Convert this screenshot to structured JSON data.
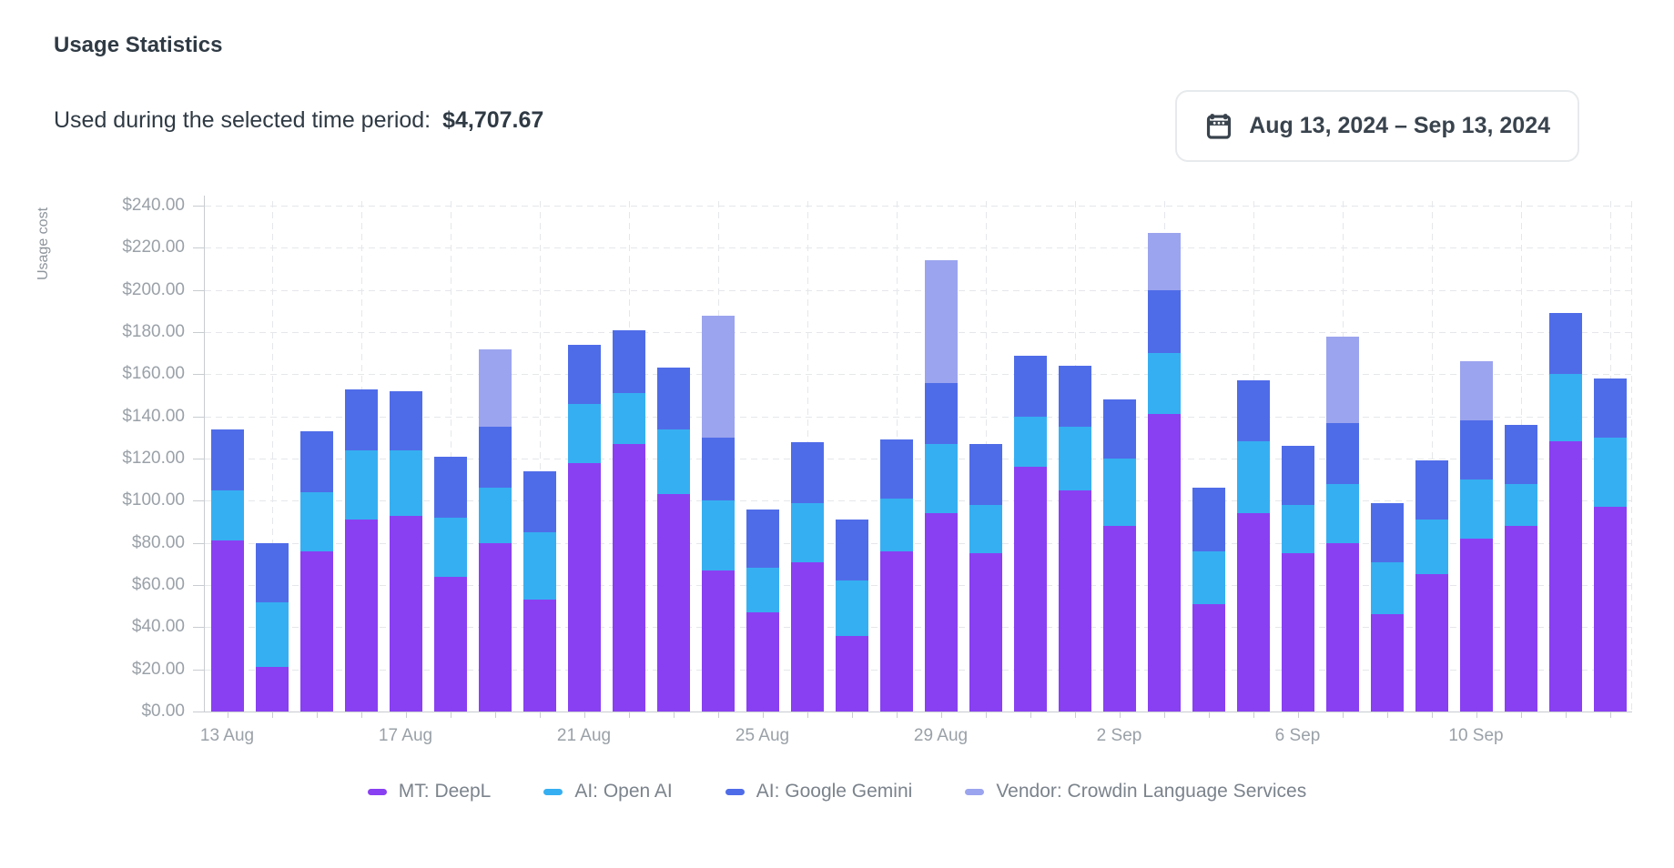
{
  "page": {
    "title": "Usage Statistics",
    "subtitle_label": "Used during the selected time period:",
    "subtitle_amount": "$4,707.67",
    "date_range": "Aug 13, 2024 – Sep 13, 2024",
    "calendar_icon": "calendar-icon",
    "icon_color": "#39434d"
  },
  "chart_data": {
    "type": "bar",
    "stacked": true,
    "title": "",
    "xlabel": "",
    "ylabel": "Usage cost",
    "ylim": [
      0,
      248
    ],
    "y_tick_step": 20,
    "y_tick_labels": [
      "$0.00",
      "$20.00",
      "$40.00",
      "$60.00",
      "$80.00",
      "$100.00",
      "$120.00",
      "$140.00",
      "$160.00",
      "$180.00",
      "$200.00",
      "$220.00",
      "$240.00"
    ],
    "grid": "dashed",
    "legend_position": "bottom",
    "categories": [
      "13 Aug",
      "14 Aug",
      "15 Aug",
      "16 Aug",
      "17 Aug",
      "18 Aug",
      "19 Aug",
      "20 Aug",
      "21 Aug",
      "22 Aug",
      "23 Aug",
      "24 Aug",
      "25 Aug",
      "26 Aug",
      "27 Aug",
      "28 Aug",
      "29 Aug",
      "30 Aug",
      "31 Aug",
      "1 Sep",
      "2 Sep",
      "3 Sep",
      "4 Sep",
      "5 Sep",
      "6 Sep",
      "7 Sep",
      "8 Sep",
      "9 Sep",
      "10 Sep",
      "11 Sep",
      "12 Sep",
      "13 Sep"
    ],
    "x_axis_labels": [
      "13 Aug",
      "17 Aug",
      "21 Aug",
      "25 Aug",
      "29 Aug",
      "2 Sep",
      "6 Sep",
      "10 Sep"
    ],
    "x_label_every": 4,
    "series": [
      {
        "name": "MT: DeepL",
        "color": "#8940f2",
        "values": [
          81,
          21,
          76,
          91,
          93,
          64,
          80,
          53,
          118,
          127,
          103,
          67,
          47,
          71,
          36,
          76,
          94,
          75,
          116,
          105,
          88,
          141,
          51,
          94,
          75,
          80,
          46,
          65,
          82,
          88,
          128,
          97
        ]
      },
      {
        "name": "AI: Open AI",
        "color": "#36aff2",
        "values": [
          24,
          31,
          28,
          33,
          31,
          28,
          26,
          32,
          28,
          24,
          31,
          33,
          21,
          28,
          26,
          25,
          33,
          23,
          24,
          30,
          32,
          29,
          25,
          34,
          23,
          28,
          25,
          26,
          28,
          20,
          32,
          33
        ]
      },
      {
        "name": "AI: Google Gemini",
        "color": "#4f6ce8",
        "values": [
          29,
          28,
          29,
          29,
          28,
          29,
          29,
          29,
          28,
          30,
          29,
          30,
          28,
          29,
          29,
          28,
          29,
          29,
          29,
          29,
          28,
          30,
          30,
          29,
          28,
          29,
          28,
          28,
          28,
          28,
          29,
          28
        ]
      },
      {
        "name": "Vendor: Crowdin Language Services",
        "color": "#9ba4ee",
        "values": [
          0,
          0,
          0,
          0,
          0,
          0,
          37,
          0,
          0,
          0,
          0,
          58,
          0,
          0,
          0,
          0,
          58,
          0,
          0,
          0,
          0,
          27,
          0,
          0,
          0,
          41,
          0,
          0,
          28,
          0,
          0,
          0
        ]
      }
    ]
  }
}
